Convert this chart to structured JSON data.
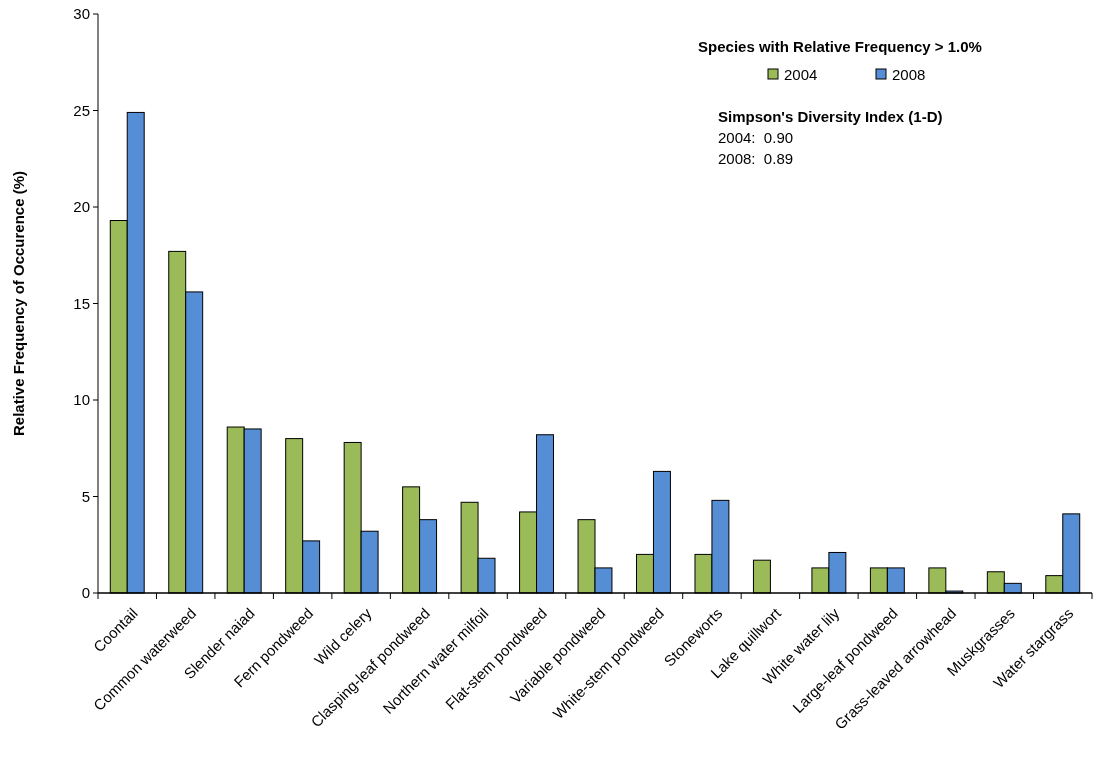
{
  "chart_data": {
    "type": "bar",
    "ylabel": "Relative Frequency of Occurence (%)",
    "legend_title": "Species with Relative Frequency > 1.0%",
    "categories": [
      "Coontail",
      "Common waterweed",
      "Slender naiad",
      "Fern pondweed",
      "Wild celery",
      "Clasping-leaf pondweed",
      "Northern water milfoil",
      "Flat-stem pondweed",
      "Variable pondweed",
      "White-stem pondweed",
      "Stoneworts",
      "Lake quillwort",
      "White water lily",
      "Large-leaf pondweed",
      "Grass-leaved arrowhead",
      "Muskgrasses",
      "Water stargrass"
    ],
    "series": [
      {
        "name": "2004",
        "color": "#9bbb59",
        "values": [
          19.3,
          17.7,
          8.6,
          8.0,
          7.8,
          5.5,
          4.7,
          4.2,
          3.8,
          2.0,
          2.0,
          1.7,
          1.3,
          1.3,
          1.3,
          1.1,
          0.9
        ]
      },
      {
        "name": "2008",
        "color": "#558ed5",
        "values": [
          24.9,
          15.6,
          8.5,
          2.7,
          3.2,
          3.8,
          1.8,
          8.2,
          1.3,
          6.3,
          4.8,
          0,
          2.1,
          1.3,
          0.1,
          0.5,
          4.1
        ]
      }
    ],
    "ylim": [
      0,
      30
    ],
    "yticks": [
      0,
      5,
      10,
      15,
      20,
      25,
      30
    ],
    "grid": false,
    "legend": "top right",
    "annotations": [
      "Simpson's Diversity Index (1-D)",
      "2004:  0.90",
      "2008:  0.89"
    ]
  }
}
